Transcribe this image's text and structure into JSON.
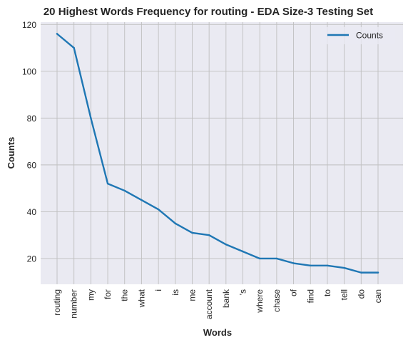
{
  "chart_data": {
    "type": "line",
    "title": "20 Highest Words Frequency for routing - EDA Size-3 Testing Set",
    "xlabel": "Words",
    "ylabel": "Counts",
    "categories": [
      "routing",
      "number",
      "my",
      "for",
      "the",
      "what",
      "i",
      "is",
      "me",
      "account",
      "bank",
      "'s",
      "where",
      "chase",
      "of",
      "find",
      "to",
      "tell",
      "do",
      "can"
    ],
    "series": [
      {
        "name": "Counts",
        "values": [
          116,
          110,
          80,
          52,
          49,
          45,
          41,
          35,
          31,
          30,
          26,
          23,
          20,
          20,
          18,
          17,
          17,
          16,
          14,
          14
        ],
        "color": "#1f77b4"
      }
    ],
    "ylim": [
      9,
      121
    ],
    "yticks": [
      20,
      40,
      60,
      80,
      100,
      120
    ],
    "grid": true,
    "legend_position": "top-right",
    "background_color": "#eaeaf2",
    "grid_color": "#bfbfbf"
  }
}
